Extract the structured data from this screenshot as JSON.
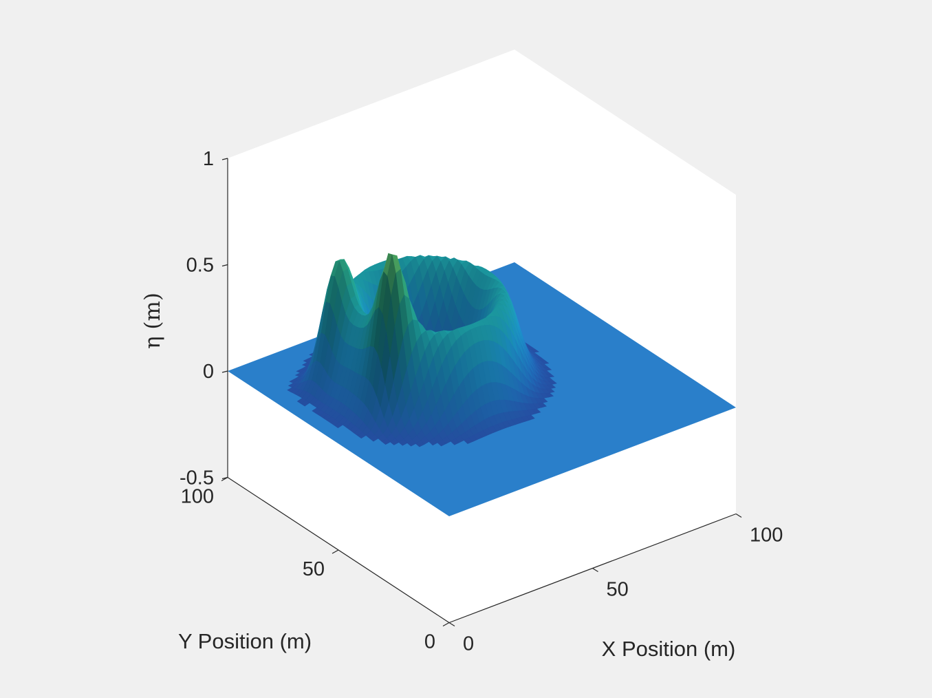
{
  "chart_data": {
    "type": "surface",
    "title": "",
    "xlabel": "X Position (m)",
    "ylabel": "Y Position (m)",
    "zlabel": "η (m)",
    "xlim": [
      0,
      100
    ],
    "ylim": [
      0,
      100
    ],
    "zlim": [
      -0.5,
      1
    ],
    "x_ticks": [
      {
        "value": 0,
        "label": "0"
      },
      {
        "value": 50,
        "label": "50"
      },
      {
        "value": 100,
        "label": "100"
      }
    ],
    "y_ticks": [
      {
        "value": 0,
        "label": "0"
      },
      {
        "value": 50,
        "label": "50"
      },
      {
        "value": 100,
        "label": "100"
      }
    ],
    "z_ticks": [
      {
        "value": -0.5,
        "label": "-0.5"
      },
      {
        "value": 0,
        "label": "0"
      },
      {
        "value": 0.5,
        "label": "0.5"
      },
      {
        "value": 1,
        "label": "1"
      }
    ],
    "surface": {
      "description": "Ring-shaped wave (water surface elevation) centered near x=40 m, y=62 m",
      "center_x": 40,
      "center_y": 62,
      "ring_radius": 21,
      "ring_width": 6.5,
      "ring_base_height": 0.42,
      "peaks": [
        {
          "x": 17,
          "y": 75,
          "height": 0.76
        },
        {
          "x": 20,
          "y": 52,
          "height": 0.8
        }
      ],
      "flat_level": 0
    },
    "colors": {
      "flat_surface": "#2a7fca",
      "colormap": [
        "#2f2f8f",
        "#1f66b0",
        "#1a87b8",
        "#1c9a9a",
        "#2ca07a",
        "#5fb05a"
      ],
      "axes_background": "#ffffff",
      "figure_background": "#f0f0f0",
      "axis_line": "#262626"
    }
  }
}
